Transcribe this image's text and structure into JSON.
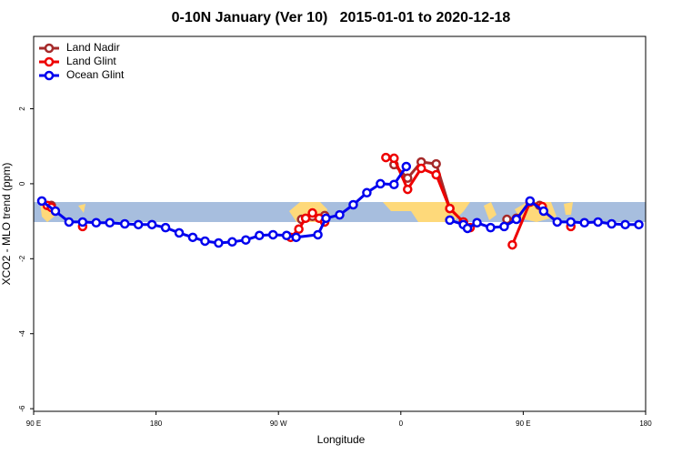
{
  "chart_data": {
    "type": "line",
    "title": "0-10N January (Ver 10)   2015-01-01 to 2020-12-18",
    "x_label": "Longitude",
    "y_label": "XCO2 - MLO trend (ppm)",
    "xlim": [
      90,
      540
    ],
    "ylim": [
      -6.07,
      3.93
    ],
    "xticks": [
      {
        "value": 90,
        "label": "90 E"
      },
      {
        "value": 180,
        "label": "180"
      },
      {
        "value": 270,
        "label": "90 W"
      },
      {
        "value": 360,
        "label": "0"
      },
      {
        "value": 450,
        "label": "90 E"
      },
      {
        "value": 540,
        "label": "180"
      }
    ],
    "yticks": [
      -6,
      -4,
      -2,
      0,
      2
    ],
    "legend": "top-left",
    "series": [
      {
        "name": "Land Nadir",
        "color": "#a52a2a",
        "x": [
          103,
          null,
          287,
          295,
          304,
          null,
          355,
          365,
          375,
          386,
          396,
          406,
          null,
          438,
          445,
          null,
          462
        ],
        "values": [
          -0.58,
          null,
          -0.95,
          -0.87,
          -0.85,
          null,
          0.51,
          0.15,
          0.58,
          0.53,
          -0.66,
          -1.02,
          null,
          -0.95,
          -0.92,
          null,
          -0.58
        ]
      },
      {
        "name": "Land Glint",
        "color": "#ee0000",
        "x": [
          100,
          103,
          null,
          126,
          null,
          279,
          285,
          290,
          295,
          300,
          304,
          null,
          349,
          355,
          365,
          375,
          386,
          396,
          406,
          411,
          null,
          442,
          455,
          464,
          null,
          485
        ],
        "values": [
          -0.58,
          -0.63,
          null,
          -1.14,
          null,
          -1.43,
          -1.21,
          -0.92,
          -0.78,
          -0.92,
          -1.02,
          null,
          0.7,
          0.68,
          -0.15,
          0.41,
          0.24,
          -0.66,
          -1.02,
          -1.17,
          null,
          -1.63,
          -0.49,
          -0.61,
          null,
          -1.14
        ]
      },
      {
        "name": "Ocean Glint",
        "color": "#0000ee",
        "x": [
          96,
          106,
          116,
          126,
          136,
          146,
          157,
          167,
          177,
          187,
          197,
          207,
          216,
          226,
          236,
          246,
          256,
          266,
          276,
          283,
          299,
          305,
          315,
          325,
          335,
          345,
          355,
          364,
          null,
          396,
          406,
          409,
          416,
          426,
          436,
          445,
          455,
          465,
          475,
          485,
          495,
          505,
          515,
          525,
          535
        ],
        "values": [
          -0.46,
          -0.73,
          -1.02,
          -1.02,
          -1.04,
          -1.04,
          -1.07,
          -1.09,
          -1.09,
          -1.17,
          -1.31,
          -1.43,
          -1.53,
          -1.58,
          -1.55,
          -1.5,
          -1.38,
          -1.36,
          -1.38,
          -1.43,
          -1.36,
          -0.92,
          -0.83,
          -0.56,
          -0.24,
          0,
          -0.02,
          0.46,
          null,
          -0.97,
          -1.09,
          -1.19,
          -1.04,
          -1.17,
          -1.14,
          -0.95,
          -0.46,
          -0.73,
          -1.02,
          -1.02,
          -1.04,
          -1.02,
          -1.07,
          -1.09,
          -1.09
        ]
      }
    ]
  }
}
